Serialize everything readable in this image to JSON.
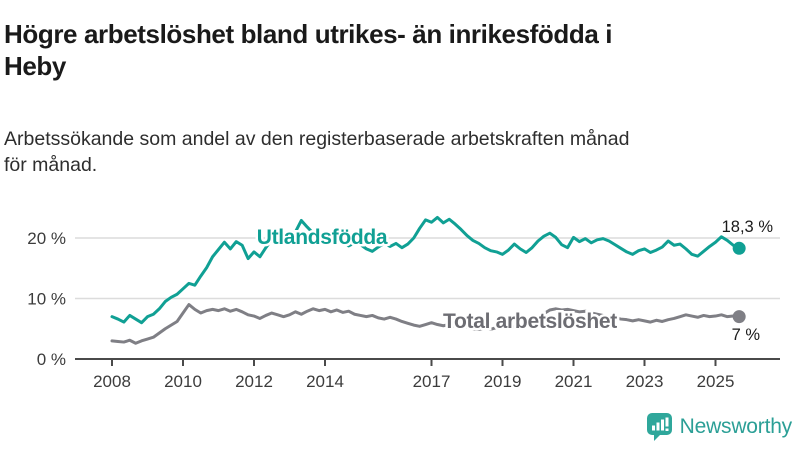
{
  "header": {
    "title": "Högre arbetslöshet bland utrikes- än inrikesfödda i\nHeby",
    "subtitle": "Arbetssökande som andel av den registerbaserade arbetskraften månad\nför månad."
  },
  "chart_data": {
    "type": "line",
    "title": "Högre arbetslöshet bland utrikes- än inrikesfödda i Heby",
    "x_axis": {
      "unit": "year",
      "range": [
        2007.0,
        2026.8
      ],
      "tick_labels": [
        2008,
        2010,
        2012,
        2014,
        2017,
        2019,
        2021,
        2023,
        2025
      ]
    },
    "y_axis": {
      "range": [
        0,
        27
      ],
      "ticks": [
        {
          "value": 0,
          "label": "0 %"
        },
        {
          "value": 10,
          "label": "10 %"
        },
        {
          "value": 20,
          "label": "20 %"
        }
      ],
      "grid": true
    },
    "series": [
      {
        "name": "Utlandsfödda",
        "color": "#10a094",
        "label_color": "#10a094",
        "end_label": "18,3 %",
        "x_start": 2008.0,
        "x_step_months": 2,
        "values": [
          7.0,
          6.6,
          6.1,
          7.2,
          6.6,
          6.0,
          7.0,
          7.4,
          8.3,
          9.5,
          10.2,
          10.7,
          11.6,
          12.5,
          12.2,
          13.7,
          15.1,
          16.9,
          18.1,
          19.3,
          18.2,
          19.4,
          18.8,
          16.6,
          17.7,
          16.9,
          18.4,
          19.7,
          20.3,
          19.8,
          20.4,
          21.0,
          22.9,
          21.8,
          20.8,
          20.2,
          20.5,
          19.8,
          20.6,
          19.4,
          18.7,
          19.2,
          18.9,
          18.2,
          17.8,
          18.5,
          19.1,
          18.6,
          19.1,
          18.4,
          19.0,
          20.0,
          21.6,
          23.0,
          22.6,
          23.4,
          22.5,
          23.1,
          22.3,
          21.4,
          20.4,
          19.6,
          19.1,
          18.4,
          17.9,
          17.7,
          17.3,
          18.0,
          19.0,
          18.2,
          17.6,
          18.4,
          19.5,
          20.3,
          20.8,
          20.1,
          18.9,
          18.4,
          20.1,
          19.4,
          19.9,
          19.2,
          19.7,
          19.9,
          19.5,
          18.9,
          18.3,
          17.7,
          17.3,
          17.9,
          18.2,
          17.6,
          18.0,
          18.5,
          19.5,
          18.8,
          19.0,
          18.2,
          17.3,
          17.0,
          17.8,
          18.6,
          19.3,
          20.2,
          19.6,
          18.8,
          18.3
        ]
      },
      {
        "name": "Total arbetslöshet",
        "color": "#7f7f85",
        "label_color": "#6d6d73",
        "end_label": "7 %",
        "x_start": 2008.0,
        "x_step_months": 2,
        "values": [
          3.0,
          2.9,
          2.8,
          3.1,
          2.6,
          3.0,
          3.3,
          3.6,
          4.3,
          5.0,
          5.6,
          6.2,
          7.6,
          9.0,
          8.2,
          7.6,
          8.0,
          8.2,
          8.0,
          8.3,
          7.9,
          8.2,
          7.8,
          7.3,
          7.1,
          6.7,
          7.2,
          7.6,
          7.3,
          7.0,
          7.3,
          7.8,
          7.4,
          7.9,
          8.3,
          8.0,
          8.2,
          7.8,
          8.1,
          7.7,
          7.9,
          7.4,
          7.2,
          7.0,
          7.2,
          6.8,
          6.6,
          6.9,
          6.6,
          6.2,
          5.9,
          5.6,
          5.4,
          5.7,
          6.0,
          5.7,
          5.5,
          5.7,
          5.4,
          5.2,
          5.3,
          5.0,
          4.9,
          5.1,
          4.9,
          5.2,
          5.2,
          5.4,
          5.3,
          5.6,
          5.5,
          5.9,
          6.4,
          7.5,
          8.1,
          8.3,
          8.1,
          8.2,
          8.0,
          7.8,
          7.9,
          7.6,
          7.4,
          7.2,
          7.0,
          6.8,
          6.6,
          6.5,
          6.3,
          6.5,
          6.3,
          6.1,
          6.4,
          6.2,
          6.5,
          6.7,
          7.0,
          7.3,
          7.1,
          6.9,
          7.2,
          7.0,
          7.1,
          7.3,
          7.0,
          7.1,
          7.0
        ]
      }
    ],
    "legend_position": "inline-labels"
  },
  "footer": {
    "brand": "Newsworthy"
  },
  "colors": {
    "accent_teal": "#10a094",
    "logo_teal": "#2fa79b",
    "series_gray": "#7f7f85",
    "gridline": "#dcdcdc",
    "axis": "#4a4a4a",
    "tick_text": "#3c3c3c",
    "value_text": "#1a1a1a"
  }
}
